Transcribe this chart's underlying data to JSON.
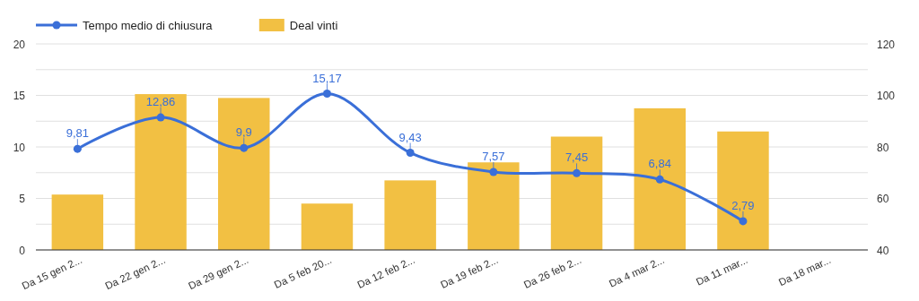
{
  "chart_data": {
    "type": "bar",
    "categories": [
      "Da 15 gen 2...",
      "Da 22 gen 2...",
      "Da 29 gen 2...",
      "Da 5 feb 20...",
      "Da 12 feb 2...",
      "Da 19 feb 2...",
      "Da 26 feb 2...",
      "Da 4 mar 2...",
      "Da 11 mar...",
      "Da 18 mar..."
    ],
    "series": [
      {
        "name": "Tempo medio di chiusura",
        "type": "line",
        "color": "#3a6fd8",
        "values": [
          9.81,
          12.86,
          9.9,
          15.17,
          9.43,
          7.57,
          7.45,
          6.84,
          2.79,
          null
        ],
        "value_labels": [
          "9,81",
          "12,86",
          "9,9",
          "15,17",
          "9,43",
          "7,57",
          "7,45",
          "6,84",
          "2,79",
          null
        ]
      },
      {
        "name": "Deal vinti",
        "axis": "y2",
        "color": "#f2c043",
        "values": [
          61.5,
          100.5,
          99,
          58,
          67,
          74,
          84,
          95,
          86,
          null
        ]
      }
    ],
    "ylim": [
      0,
      20
    ],
    "yticks": [
      0,
      {
        "value": 2.5,
        "label": null
      },
      5,
      {
        "value": 7.5,
        "label": null
      },
      10,
      {
        "value": 12.5,
        "label": null
      },
      15,
      {
        "value": 17.5,
        "label": null
      },
      20
    ],
    "y2lim": [
      40,
      120
    ],
    "y2ticks": [
      40,
      60,
      80,
      100,
      120
    ],
    "grid": "y",
    "legend": "top left",
    "marker": "circle"
  }
}
